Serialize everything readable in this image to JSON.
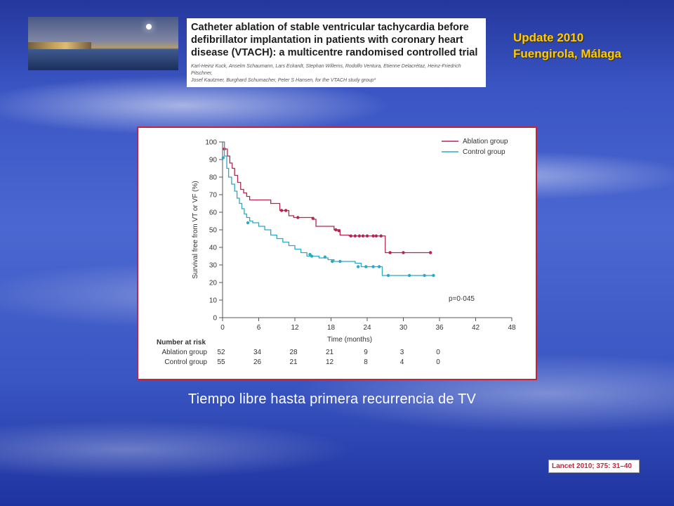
{
  "header": {
    "paper_title": "Catheter ablation of stable ventricular tachycardia before\ndefibrillator implantation in patients with coronary heart\ndisease (VTACH): a multicentre randomised controlled trial",
    "authors": "Karl-Heinz Kuck, Anselm Schaumann, Lars Eckardt, Stephan Willems, Rodolfo Ventura, Etienne Delacrétaz, Heinz-Friedrich Pitschner,\nJosef Kautzner, Burghard Schumacher, Peter S Hansen, for the VTACH study group*",
    "update_label": "Update 2010\nFuengirola, Málaga"
  },
  "caption": "Tiempo libre hasta primera recurrencia de TV",
  "citation": "Lancet 2010; 375: 31–40",
  "chart_data": {
    "type": "line",
    "title": "",
    "xlabel": "Time (months)",
    "ylabel": "Survival free from VT or VF (%)",
    "xlim": [
      0,
      48
    ],
    "ylim": [
      0,
      100
    ],
    "xticks": [
      0,
      6,
      12,
      18,
      24,
      30,
      36,
      42,
      48
    ],
    "yticks": [
      0,
      10,
      20,
      30,
      40,
      50,
      60,
      70,
      80,
      90,
      100
    ],
    "legend_position": "top-right",
    "annotation": "p=0·045",
    "series": [
      {
        "name": "Ablation group",
        "color": "#b5264e",
        "steps": [
          [
            0,
            100
          ],
          [
            0.3,
            96
          ],
          [
            0.8,
            92
          ],
          [
            1.2,
            88
          ],
          [
            1.6,
            85
          ],
          [
            2,
            81
          ],
          [
            2.5,
            77
          ],
          [
            3,
            73
          ],
          [
            3.5,
            71
          ],
          [
            4,
            69
          ],
          [
            4.5,
            67
          ],
          [
            8,
            65
          ],
          [
            9.5,
            61
          ],
          [
            11,
            58
          ],
          [
            11.8,
            57
          ],
          [
            15,
            56
          ],
          [
            15.5,
            52
          ],
          [
            18.5,
            50
          ],
          [
            19.5,
            47
          ],
          [
            21,
            46.5
          ],
          [
            27,
            37
          ],
          [
            34.5,
            37
          ]
        ],
        "censored": [
          [
            0.3,
            96
          ],
          [
            9.8,
            61
          ],
          [
            10.5,
            61
          ],
          [
            12.5,
            57
          ],
          [
            15,
            56.5
          ],
          [
            18.8,
            50
          ],
          [
            19.3,
            49.5
          ],
          [
            21.3,
            46.5
          ],
          [
            22,
            46.5
          ],
          [
            22.7,
            46.5
          ],
          [
            23.3,
            46.5
          ],
          [
            24,
            46.5
          ],
          [
            25,
            46.5
          ],
          [
            25.5,
            46.5
          ],
          [
            26.3,
            46.5
          ],
          [
            27.8,
            37
          ],
          [
            30,
            37
          ],
          [
            34.5,
            37
          ]
        ]
      },
      {
        "name": "Control group",
        "color": "#2aa8c4",
        "steps": [
          [
            0,
            100
          ],
          [
            0.3,
            92
          ],
          [
            0.7,
            85
          ],
          [
            1,
            80
          ],
          [
            1.5,
            76
          ],
          [
            2,
            72
          ],
          [
            2.4,
            68
          ],
          [
            2.8,
            65
          ],
          [
            3.2,
            62
          ],
          [
            3.6,
            59
          ],
          [
            4,
            57
          ],
          [
            4.5,
            55
          ],
          [
            5,
            54
          ],
          [
            6,
            52
          ],
          [
            7,
            50
          ],
          [
            8,
            47
          ],
          [
            9,
            45
          ],
          [
            10,
            43
          ],
          [
            11,
            41
          ],
          [
            12,
            39
          ],
          [
            13,
            37
          ],
          [
            14,
            35
          ],
          [
            16,
            34
          ],
          [
            17.5,
            33
          ],
          [
            18.5,
            32
          ],
          [
            22,
            31
          ],
          [
            23,
            29
          ],
          [
            26,
            29
          ],
          [
            26.5,
            24
          ],
          [
            35,
            24
          ]
        ],
        "censored": [
          [
            0.1,
            91
          ],
          [
            4.2,
            54
          ],
          [
            14.5,
            36
          ],
          [
            14.8,
            35
          ],
          [
            17,
            34.5
          ],
          [
            18.2,
            32
          ],
          [
            19.5,
            32
          ],
          [
            22.5,
            29
          ],
          [
            23.8,
            29
          ],
          [
            25,
            29
          ],
          [
            26,
            29
          ],
          [
            27.5,
            24
          ],
          [
            31,
            24
          ],
          [
            33.5,
            24
          ],
          [
            35,
            24
          ]
        ]
      }
    ],
    "risk_table": {
      "header": "Number at risk",
      "times": [
        0,
        6,
        12,
        18,
        24,
        30,
        36
      ],
      "rows": [
        {
          "label": "Ablation group",
          "values": [
            "52",
            "34",
            "28",
            "21",
            "9",
            "3",
            "0"
          ]
        },
        {
          "label": "Control group",
          "values": [
            "55",
            "26",
            "21",
            "12",
            "8",
            "4",
            "0"
          ]
        }
      ]
    }
  }
}
